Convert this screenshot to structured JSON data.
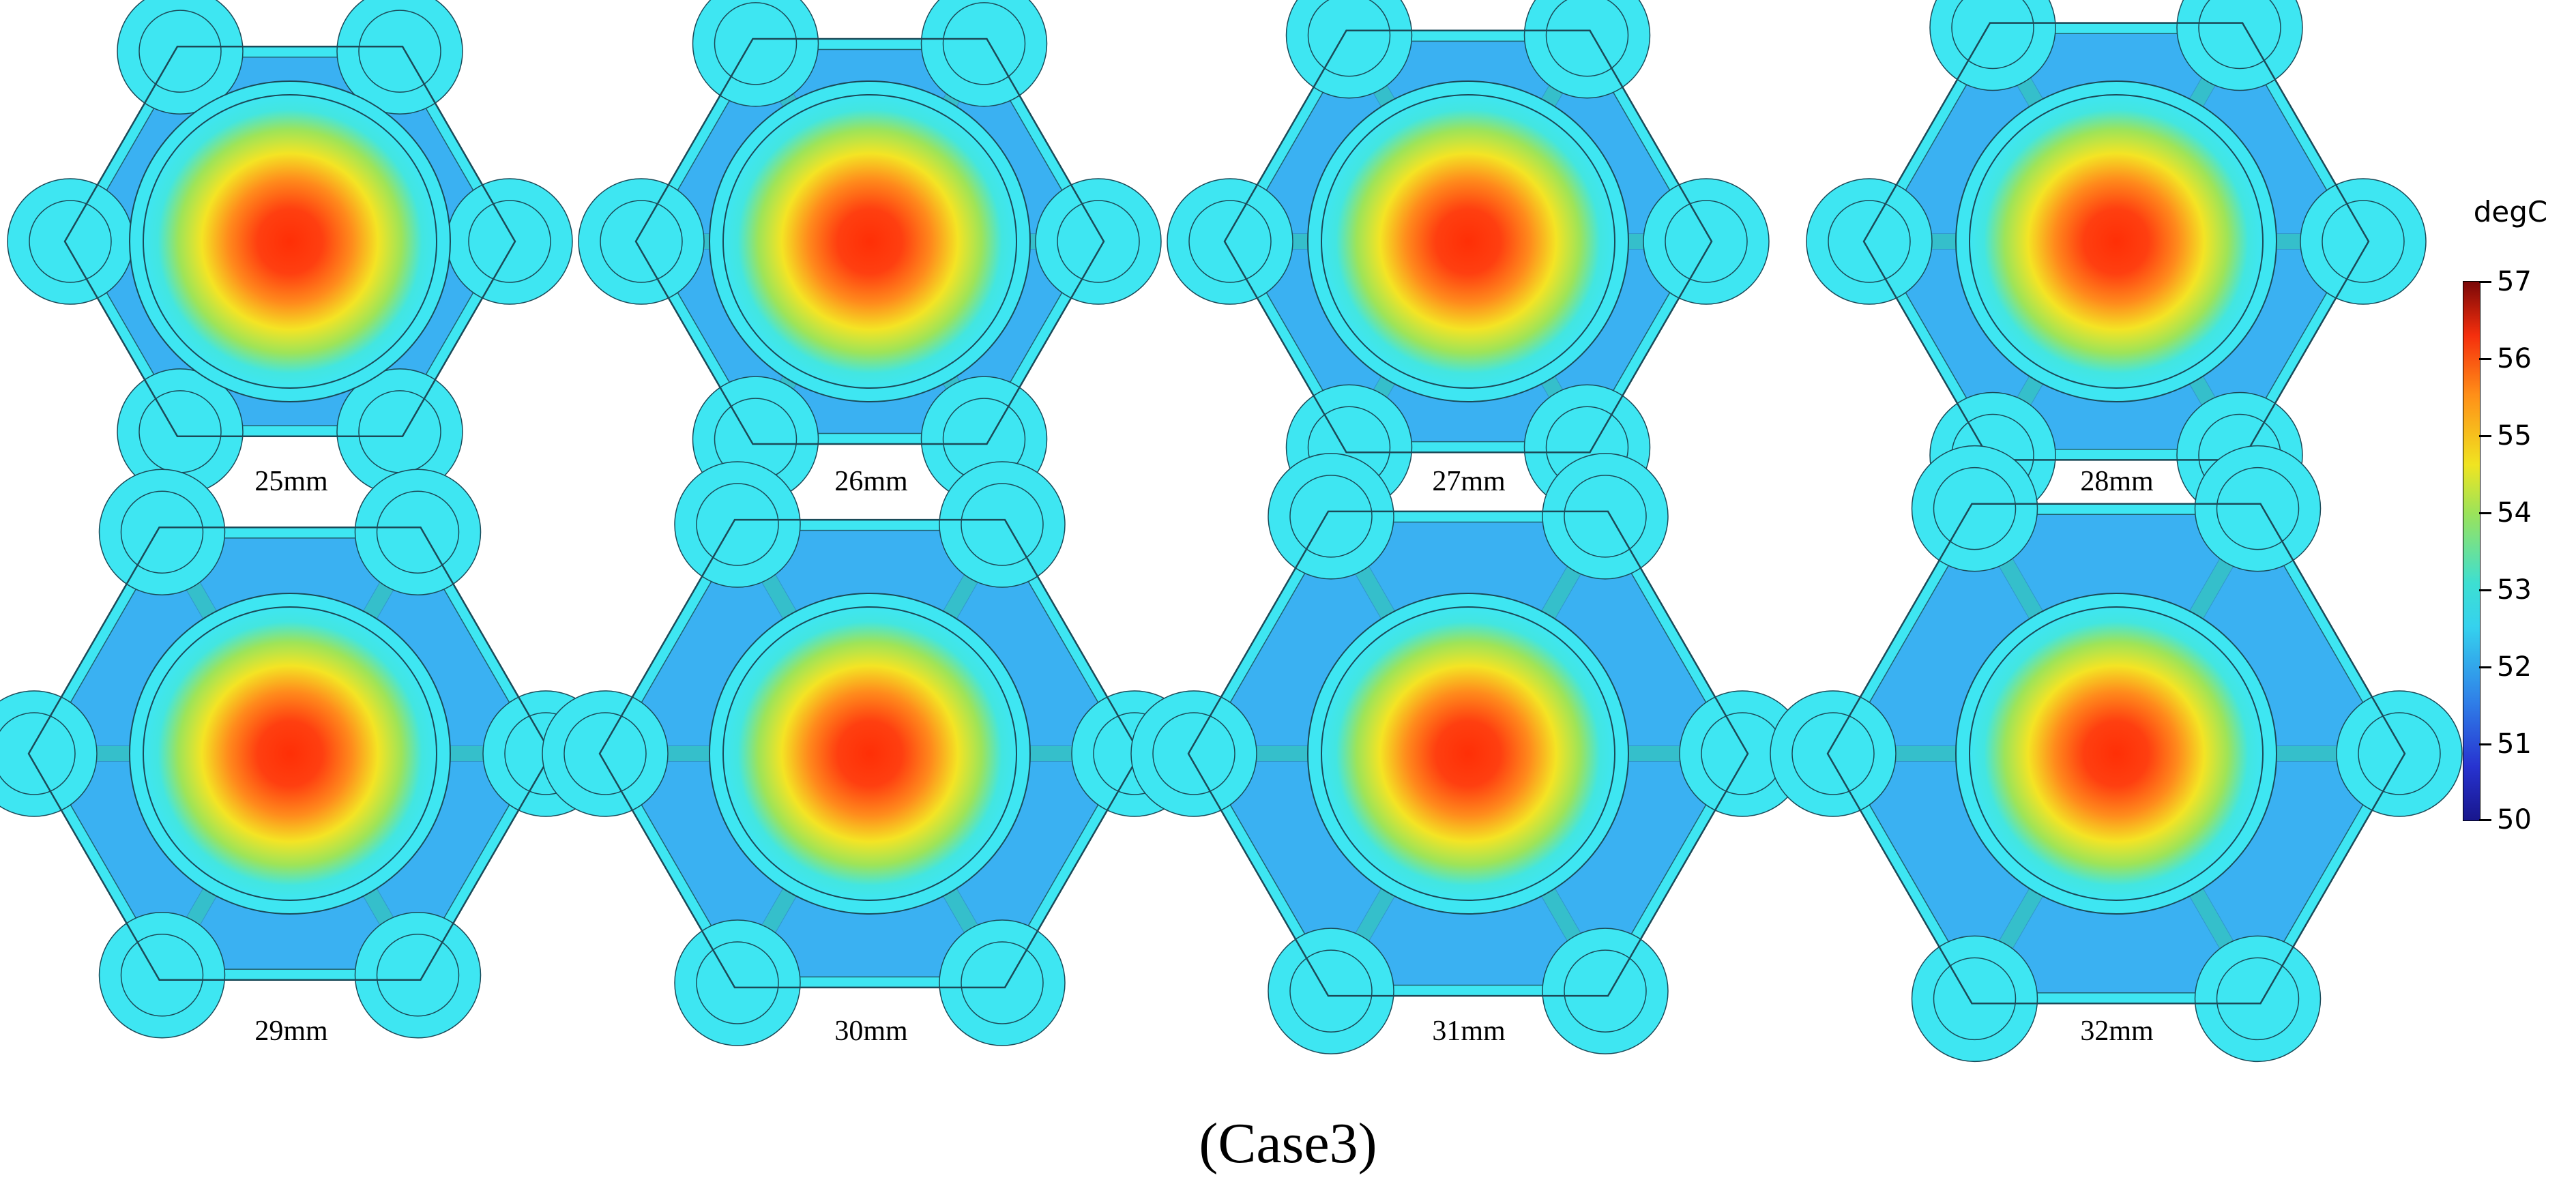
{
  "panels": [
    {
      "label": "25mm"
    },
    {
      "label": "26mm"
    },
    {
      "label": "27mm"
    },
    {
      "label": "28mm"
    },
    {
      "label": "29mm"
    },
    {
      "label": "30mm"
    },
    {
      "label": "31mm"
    },
    {
      "label": "32mm"
    }
  ],
  "colorbar": {
    "unit": "degC",
    "ticks": [
      "57",
      "56",
      "55",
      "54",
      "53",
      "52",
      "51",
      "50"
    ],
    "min": 50,
    "max": 57
  },
  "caption": "(Case3)",
  "colors": {
    "hot_core": "#ff3a0a",
    "mid_yellow": "#f2e020",
    "cool_cyan": "#3ee6f2",
    "cool_blue": "#3aa8f2",
    "outline": "#1b4a58"
  }
}
